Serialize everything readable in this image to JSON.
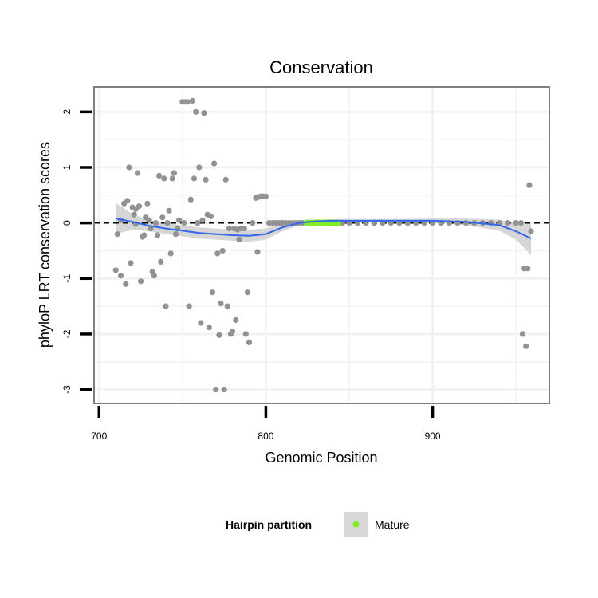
{
  "chart_data": {
    "type": "scatter",
    "title": "Conservation",
    "xlabel": "Genomic Position",
    "ylabel": "phyloP LRT conservation scores",
    "xlim": [
      697,
      970
    ],
    "ylim": [
      -3.25,
      2.45
    ],
    "xticks": [
      700,
      800,
      900
    ],
    "yticks": [
      -3,
      -2,
      -1,
      0,
      1,
      2
    ],
    "grid": true,
    "reference_line": {
      "y": 0,
      "style": "dashed"
    },
    "legend": {
      "title": "Hairpin partition",
      "placement": "bottom",
      "entries": [
        {
          "label": "Mature",
          "color": "#80ee22"
        }
      ]
    },
    "colors": {
      "points": "#929292",
      "mature": "#80ee22",
      "smooth": "#3366ee",
      "band": "#d2d2d2",
      "frame": "#7f7f7f",
      "grid": "#f2f2f2"
    },
    "series": [
      {
        "name": "scores",
        "points": [
          [
            710,
            -0.85
          ],
          [
            711,
            -0.2
          ],
          [
            713,
            0.05
          ],
          [
            713,
            -0.95
          ],
          [
            715,
            0.35
          ],
          [
            716,
            -1.1
          ],
          [
            717,
            0.4
          ],
          [
            718,
            1.0
          ],
          [
            719,
            -0.72
          ],
          [
            720,
            0.28
          ],
          [
            721,
            0.15
          ],
          [
            722,
            0.25
          ],
          [
            722,
            -0.02
          ],
          [
            723,
            0.9
          ],
          [
            724,
            0.3
          ],
          [
            725,
            -1.05
          ],
          [
            726,
            -0.25
          ],
          [
            727,
            -0.22
          ],
          [
            728,
            0.1
          ],
          [
            729,
            0.35
          ],
          [
            730,
            0.05
          ],
          [
            731,
            -0.1
          ],
          [
            732,
            -0.88
          ],
          [
            733,
            -0.95
          ],
          [
            734,
            0.0
          ],
          [
            735,
            -0.22
          ],
          [
            736,
            0.85
          ],
          [
            737,
            -0.7
          ],
          [
            738,
            0.1
          ],
          [
            739,
            0.8
          ],
          [
            740,
            -1.5
          ],
          [
            741,
            0.0
          ],
          [
            742,
            0.22
          ],
          [
            743,
            -0.55
          ],
          [
            744,
            0.8
          ],
          [
            745,
            0.9
          ],
          [
            746,
            -0.2
          ],
          [
            747,
            -0.1
          ],
          [
            748,
            0.05
          ],
          [
            750,
            2.18
          ],
          [
            751,
            0.0
          ],
          [
            752,
            2.18
          ],
          [
            753,
            2.18
          ],
          [
            754,
            -1.5
          ],
          [
            755,
            0.42
          ],
          [
            756,
            2.2
          ],
          [
            757,
            0.8
          ],
          [
            758,
            2.0
          ],
          [
            759,
            0.0
          ],
          [
            760,
            1.0
          ],
          [
            761,
            -1.8
          ],
          [
            762,
            0.05
          ],
          [
            763,
            1.98
          ],
          [
            764,
            0.78
          ],
          [
            765,
            0.15
          ],
          [
            766,
            -1.88
          ],
          [
            767,
            0.12
          ],
          [
            768,
            -1.25
          ],
          [
            769,
            1.07
          ],
          [
            770,
            -3.0
          ],
          [
            771,
            -0.55
          ],
          [
            772,
            -2.02
          ],
          [
            773,
            -1.45
          ],
          [
            774,
            -0.5
          ],
          [
            775,
            -3.0
          ],
          [
            776,
            0.78
          ],
          [
            777,
            -1.5
          ],
          [
            778,
            -0.1
          ],
          [
            779,
            -2.0
          ],
          [
            780,
            -1.95
          ],
          [
            781,
            -0.1
          ],
          [
            782,
            -1.75
          ],
          [
            783,
            -0.12
          ],
          [
            784,
            -0.3
          ],
          [
            785,
            -0.1
          ],
          [
            787,
            -0.1
          ],
          [
            788,
            -2.0
          ],
          [
            789,
            -1.25
          ],
          [
            790,
            -2.15
          ],
          [
            792,
            0.0
          ],
          [
            794,
            0.45
          ],
          [
            795,
            -0.52
          ],
          [
            796,
            0.47
          ],
          [
            797,
            0.48
          ],
          [
            798,
            0.48
          ],
          [
            800,
            0.48
          ],
          [
            802,
            0.0
          ],
          [
            804,
            0.0
          ],
          [
            806,
            0.0
          ],
          [
            808,
            0.0
          ],
          [
            810,
            0.0
          ],
          [
            812,
            0.0
          ],
          [
            814,
            0.0
          ],
          [
            816,
            0.0
          ],
          [
            818,
            0.0
          ],
          [
            820,
            0.0
          ],
          [
            822,
            0.0
          ],
          [
            846,
            0.0
          ],
          [
            850,
            0.0
          ],
          [
            855,
            0.0
          ],
          [
            860,
            0.0
          ],
          [
            865,
            0.0
          ],
          [
            870,
            0.0
          ],
          [
            875,
            0.0
          ],
          [
            880,
            0.0
          ],
          [
            885,
            0.0
          ],
          [
            890,
            0.0
          ],
          [
            895,
            0.0
          ],
          [
            900,
            0.0
          ],
          [
            905,
            0.0
          ],
          [
            910,
            0.0
          ],
          [
            915,
            0.0
          ],
          [
            920,
            0.0
          ],
          [
            925,
            0.0
          ],
          [
            930,
            0.0
          ],
          [
            935,
            0.0
          ],
          [
            940,
            0.0
          ],
          [
            945,
            0.0
          ],
          [
            950,
            0.0
          ],
          [
            953,
            0.0
          ],
          [
            954,
            -2.0
          ],
          [
            955,
            -0.82
          ],
          [
            956,
            -2.22
          ],
          [
            957,
            -0.82
          ],
          [
            958,
            0.68
          ],
          [
            959,
            -0.15
          ]
        ]
      },
      {
        "name": "Mature",
        "points": [
          [
            825,
            0.0
          ],
          [
            827,
            0.0
          ],
          [
            829,
            0.0
          ],
          [
            831,
            0.0
          ],
          [
            833,
            0.0
          ],
          [
            835,
            0.0
          ],
          [
            837,
            0.0
          ],
          [
            839,
            0.0
          ],
          [
            841,
            0.0
          ],
          [
            843,
            0.0
          ]
        ]
      }
    ],
    "smooth": {
      "x": [
        710,
        720,
        730,
        740,
        750,
        760,
        770,
        780,
        790,
        800,
        810,
        820,
        830,
        840,
        860,
        880,
        900,
        920,
        940,
        950,
        959
      ],
      "y": [
        0.08,
        0.02,
        -0.05,
        -0.1,
        -0.14,
        -0.18,
        -0.2,
        -0.22,
        -0.23,
        -0.2,
        -0.08,
        0.0,
        0.03,
        0.04,
        0.04,
        0.04,
        0.04,
        0.02,
        -0.04,
        -0.15,
        -0.28
      ],
      "lower": [
        -0.2,
        -0.12,
        -0.15,
        -0.2,
        -0.24,
        -0.28,
        -0.3,
        -0.32,
        -0.34,
        -0.3,
        -0.15,
        -0.04,
        0.0,
        0.01,
        0.01,
        0.01,
        0.0,
        -0.04,
        -0.14,
        -0.3,
        -0.58
      ],
      "upper": [
        0.36,
        0.16,
        0.05,
        0.0,
        -0.04,
        -0.08,
        -0.1,
        -0.12,
        -0.12,
        -0.1,
        -0.01,
        0.04,
        0.06,
        0.07,
        0.07,
        0.07,
        0.08,
        0.08,
        0.06,
        0.0,
        0.02
      ]
    }
  }
}
